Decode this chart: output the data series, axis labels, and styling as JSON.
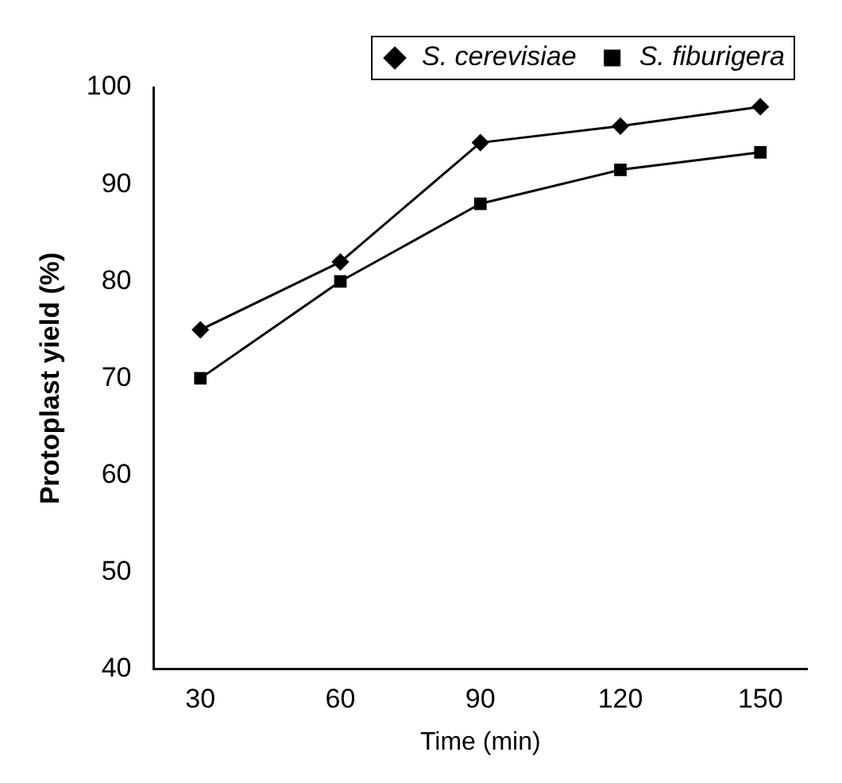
{
  "chart_data": {
    "type": "line",
    "xlabel": "Time (min)",
    "ylabel": "Protoplast yield (%)",
    "x": [
      30,
      60,
      90,
      120,
      150
    ],
    "series": [
      {
        "name": "S. cerevisiae",
        "color": "#000000",
        "marker": "diamond",
        "values": [
          75,
          82,
          94.3,
          96,
          98
        ]
      },
      {
        "name": "S. fiburigera",
        "color": "#000000",
        "marker": "square",
        "values": [
          70,
          80,
          88,
          91.5,
          93.3
        ]
      }
    ],
    "xlim": [
      20,
      160
    ],
    "xticks": [
      30,
      60,
      90,
      120,
      150
    ],
    "ylim": [
      40,
      100
    ],
    "yticks": [
      40,
      50,
      60,
      70,
      80,
      90,
      100
    ],
    "grid": false,
    "legend": "top right",
    "line_style": "solid"
  }
}
